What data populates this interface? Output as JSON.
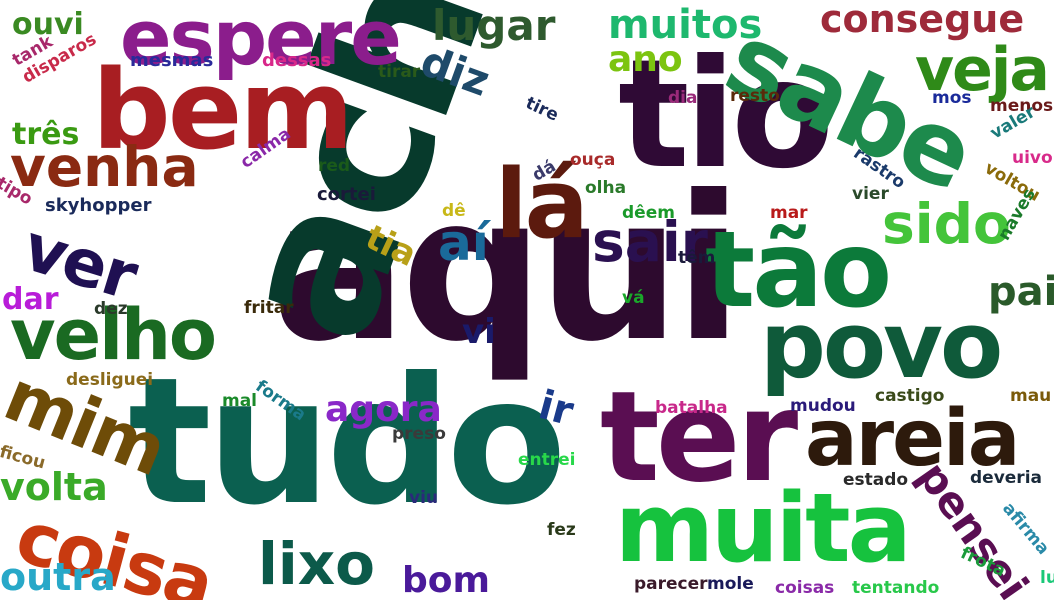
{
  "words": [
    {
      "text": "aqui",
      "color": "#2d0a2e"
    },
    {
      "text": "acho",
      "color": "#073a2c"
    },
    {
      "text": "tudo",
      "color": "#0b6050"
    },
    {
      "text": "tio",
      "color": "#2f0a35"
    },
    {
      "text": "bem",
      "color": "#a81e22"
    },
    {
      "text": "espere",
      "color": "#8b1d8c"
    },
    {
      "text": "sabe",
      "color": "#1d8a4c"
    },
    {
      "text": "ter",
      "color": "#5a0e52"
    },
    {
      "text": "muita",
      "color": "#16c23e"
    },
    {
      "text": "tão",
      "color": "#0c7a3a"
    },
    {
      "text": "povo",
      "color": "#0f5a3a"
    },
    {
      "text": "areia",
      "color": "#2d1a0c"
    },
    {
      "text": "lá",
      "color": "#5c1a0e"
    },
    {
      "text": "ver",
      "color": "#1f1052"
    },
    {
      "text": "velho",
      "color": "#1a6a22"
    },
    {
      "text": "venha",
      "color": "#8a2a12"
    },
    {
      "text": "coisa",
      "color": "#c83a10"
    },
    {
      "text": "mim",
      "color": "#6e4c08"
    },
    {
      "text": "sido",
      "color": "#44c43a"
    },
    {
      "text": "veja",
      "color": "#2f8a18"
    },
    {
      "text": "sair",
      "color": "#2a1050"
    },
    {
      "text": "aí",
      "color": "#1a6a9a"
    },
    {
      "text": "lixo",
      "color": "#0c5a4a"
    },
    {
      "text": "pensei",
      "color": "#5a0e52"
    },
    {
      "text": "lugar",
      "color": "#2e5a2e"
    },
    {
      "text": "diz",
      "color": "#1e4a6a"
    },
    {
      "text": "muitos",
      "color": "#1eb86e"
    },
    {
      "text": "consegue",
      "color": "#9e2a3a"
    },
    {
      "text": "ano",
      "color": "#7cc410"
    },
    {
      "text": "ouvi",
      "color": "#3a8a22"
    },
    {
      "text": "três",
      "color": "#3a9a12"
    },
    {
      "text": "agora",
      "color": "#8a28c8"
    },
    {
      "text": "ir",
      "color": "#1a3a8a"
    },
    {
      "text": "bom",
      "color": "#4a1a9a"
    },
    {
      "text": "outra",
      "color": "#28a8c8"
    },
    {
      "text": "volta",
      "color": "#3aaa28"
    },
    {
      "text": "dar",
      "color": "#b81cd8"
    },
    {
      "text": "tia",
      "color": "#b8a018"
    },
    {
      "text": "vi",
      "color": "#1a1a6a"
    },
    {
      "text": "pai",
      "color": "#2a5a2a"
    },
    {
      "text": "tank",
      "color": "#a8286a"
    },
    {
      "text": "disparos",
      "color": "#c82a4a"
    },
    {
      "text": "mesmas",
      "color": "#2a2a9a"
    },
    {
      "text": "dessas",
      "color": "#d8288a"
    },
    {
      "text": "tirar",
      "color": "#2a5a1a"
    },
    {
      "text": "tire",
      "color": "#1a2a5a"
    },
    {
      "text": "dia",
      "color": "#9a2a7a"
    },
    {
      "text": "resto",
      "color": "#5a2a0a"
    },
    {
      "text": "mos",
      "color": "#1a2a9a"
    },
    {
      "text": "menos",
      "color": "#6a1a1a"
    },
    {
      "text": "valer",
      "color": "#1a7a7a"
    },
    {
      "text": "uivo",
      "color": "#d82a8a"
    },
    {
      "text": "voltou",
      "color": "#8a6a0a"
    },
    {
      "text": "rastro",
      "color": "#1a3a6a"
    },
    {
      "text": "calma",
      "color": "#8a28a8"
    },
    {
      "text": "red",
      "color": "#1a5a1a"
    },
    {
      "text": "ouça",
      "color": "#a82a2a"
    },
    {
      "text": "dá",
      "color": "#3a3a6a"
    },
    {
      "text": "tipo",
      "color": "#a8286a"
    },
    {
      "text": "skyhopper",
      "color": "#1a2a5a"
    },
    {
      "text": "cortei",
      "color": "#1a1a3a"
    },
    {
      "text": "olha",
      "color": "#2a7a2a"
    },
    {
      "text": "vier",
      "color": "#2a4a2a"
    },
    {
      "text": "dê",
      "color": "#c8b818"
    },
    {
      "text": "dêem",
      "color": "#1a9a2a"
    },
    {
      "text": "mar",
      "color": "#b81a1a"
    },
    {
      "text": "têm",
      "color": "#1a1a3a"
    },
    {
      "text": "naves",
      "color": "#1a7a2a"
    },
    {
      "text": "dez",
      "color": "#2a3a2a"
    },
    {
      "text": "fritar",
      "color": "#3a2a0a"
    },
    {
      "text": "vá",
      "color": "#1aa82a"
    },
    {
      "text": "desliguei",
      "color": "#8a6a1a"
    },
    {
      "text": "forma",
      "color": "#1a7a8a"
    },
    {
      "text": "mal",
      "color": "#1a8a2a"
    },
    {
      "text": "mudou",
      "color": "#2a1a7a"
    },
    {
      "text": "castigo",
      "color": "#3a4a1a"
    },
    {
      "text": "mau",
      "color": "#7a5a0a"
    },
    {
      "text": "batalha",
      "color": "#c8288a"
    },
    {
      "text": "preso",
      "color": "#3a3a3a"
    },
    {
      "text": "ficou",
      "color": "#8a6a2a"
    },
    {
      "text": "entrei",
      "color": "#28d84a"
    },
    {
      "text": "estado",
      "color": "#2a2a2a"
    },
    {
      "text": "deveria",
      "color": "#1a2a3a"
    },
    {
      "text": "afirma",
      "color": "#2a8aa8"
    },
    {
      "text": "viu",
      "color": "#2a2a7a"
    },
    {
      "text": "fez",
      "color": "#2a3a1a"
    },
    {
      "text": "parecer",
      "color": "#3a1a2a"
    },
    {
      "text": "mole",
      "color": "#1a1a5a"
    },
    {
      "text": "coisas",
      "color": "#8a2aa8"
    },
    {
      "text": "tentando",
      "color": "#28c84a"
    },
    {
      "text": "frota",
      "color": "#1a9a3a"
    },
    {
      "text": "luta",
      "color": "#1ac878"
    }
  ]
}
